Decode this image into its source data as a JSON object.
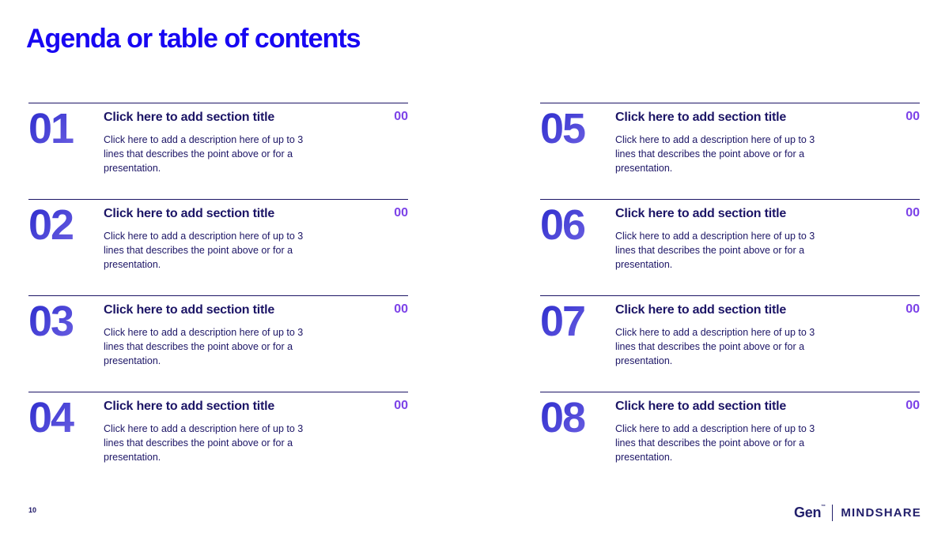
{
  "slide": {
    "title": "Agenda or table of contents",
    "page_number": "10"
  },
  "colors": {
    "title_blue": "#1807F2",
    "navy": "#1C1566",
    "page_purple": "#7C42E8",
    "number_gradient_start": "#3533D0",
    "number_gradient_end": "#9884F0",
    "logo_navy": "#221F6B"
  },
  "items": [
    {
      "number": "01",
      "title": "Click here to add section title",
      "page": "00",
      "desc_lines": [
        "Click here to add a description here of up to 3",
        "lines that describes the point above or for a",
        "presentation."
      ]
    },
    {
      "number": "02",
      "title": "Click here to add section title",
      "page": "00",
      "desc_lines": [
        "Click here to add a description here of up to 3",
        "lines that describes the point above or for a",
        "presentation."
      ]
    },
    {
      "number": "03",
      "title": "Click here to add section title",
      "page": "00",
      "desc_lines": [
        "Click here to add a description here of up to 3",
        "lines that describes the point above or for a",
        "presentation."
      ]
    },
    {
      "number": "04",
      "title": "Click here to add section title",
      "page": "00",
      "desc_lines": [
        "Click here to add a description here of up to 3",
        "lines that describes the point above or for a",
        "presentation."
      ]
    },
    {
      "number": "05",
      "title": "Click here to add section title",
      "page": "00",
      "desc_lines": [
        "Click here to add a description here of up to 3",
        "lines that describes the point above or for a",
        "presentation."
      ]
    },
    {
      "number": "06",
      "title": "Click here to add section title",
      "page": "00",
      "desc_lines": [
        "Click here to add a description here of up to 3",
        "lines that describes the point above or for a",
        "presentation."
      ]
    },
    {
      "number": "07",
      "title": "Click here to add section title",
      "page": "00",
      "desc_lines": [
        "Click here to add a description here of up to 3",
        "lines that describes the point above or for a",
        "presentation."
      ]
    },
    {
      "number": "08",
      "title": "Click here to add section title",
      "page": "00",
      "desc_lines": [
        "Click here to add a description here of up to 3",
        "lines that describes the point above or for a",
        "presentation."
      ]
    }
  ],
  "footer": {
    "logo_primary": "Gen",
    "logo_trademark": "™",
    "logo_secondary": "MINDSHARE"
  }
}
